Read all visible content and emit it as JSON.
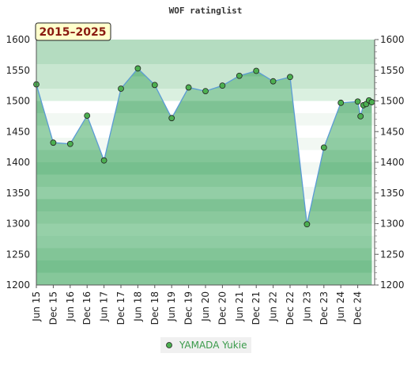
{
  "chart_data": {
    "type": "area",
    "title": "WOF ratinglist",
    "period_label": "2015–2025",
    "ylim": [
      1200,
      1600
    ],
    "yticks": [
      1200,
      1250,
      1300,
      1350,
      1400,
      1450,
      1500,
      1550,
      1600
    ],
    "xlim": [
      "2015-06",
      "2025-06"
    ],
    "x_tick_labels": [
      "Jun 15",
      "Dec 15",
      "Jun 16",
      "Dec 16",
      "Jun 17",
      "Dec 17",
      "Jun 18",
      "Dec 18",
      "Jun 19",
      "Dec 19",
      "Jun 20",
      "Dec 20",
      "Jun 21",
      "Dec 21",
      "Jun 22",
      "Dec 22",
      "Jun 23",
      "Dec 23",
      "Jun 24",
      "Dec 24"
    ],
    "grid": true,
    "legend_position": "bottom-center",
    "colors": {
      "line": "#5b9bd5",
      "marker": "#4caf50",
      "fill": "#6dbb85",
      "period_box": "#ffffcc"
    },
    "series": [
      {
        "name": "YAMADA Yukie",
        "x": [
          "2015-06",
          "2015-12",
          "2016-06",
          "2016-12",
          "2017-06",
          "2017-12",
          "2018-06",
          "2018-12",
          "2019-06",
          "2019-12",
          "2020-06",
          "2020-12",
          "2021-06",
          "2021-12",
          "2022-06",
          "2022-12",
          "2023-06",
          "2023-12",
          "2024-06",
          "2024-12",
          "2025-01",
          "2025-02",
          "2025-03",
          "2025-04",
          "2025-05"
        ],
        "y": [
          1527,
          1432,
          1430,
          1476,
          1403,
          1520,
          1553,
          1526,
          1472,
          1522,
          1516,
          1525,
          1541,
          1549,
          1532,
          1539,
          1299,
          1424,
          1497,
          1499,
          1475,
          1493,
          1495,
          1501,
          1498
        ]
      }
    ]
  }
}
